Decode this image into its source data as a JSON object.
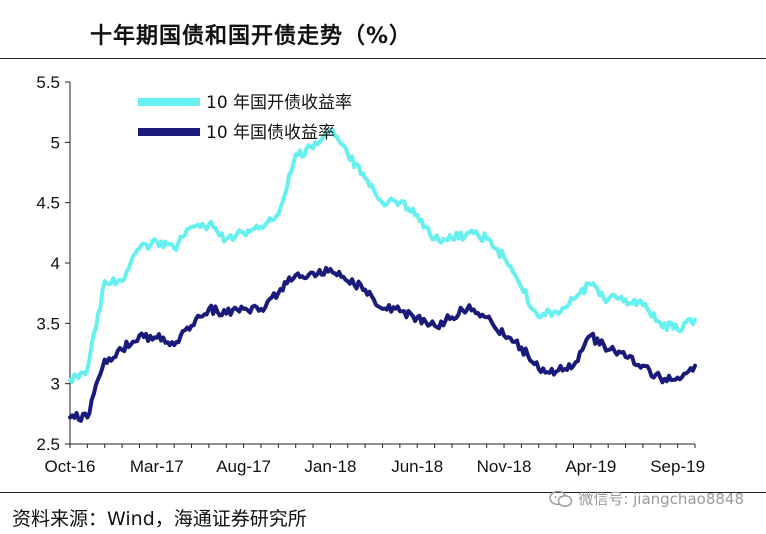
{
  "header": {
    "title": "十年期国债和国开债走势（%）"
  },
  "footer": {
    "source": "资料来源：Wind，海通证券研究所",
    "watermark": "微信号: jiangchao8848"
  },
  "colors": {
    "cdb": "#66F0F0",
    "gov": "#1A1A7A"
  },
  "icons": {
    "watermark": "wechat-icon"
  },
  "chart_data": {
    "type": "line",
    "title": "",
    "xlabel": "",
    "ylabel": "",
    "ylim": [
      2.5,
      5.5
    ],
    "yticks": [
      "5.5",
      "5",
      "4.5",
      "4",
      "3.5",
      "3",
      "2.5"
    ],
    "xticks": [
      "Oct-16",
      "Mar-17",
      "Aug-17",
      "Jan-18",
      "Jun-18",
      "Nov-18",
      "Apr-19",
      "Sep-19"
    ],
    "x_ticks_index": [
      0,
      5,
      10,
      15,
      20,
      25,
      30,
      35
    ],
    "grid": false,
    "legend": "top-left",
    "x": [
      "2016-10",
      "2016-11",
      "2016-12",
      "2017-01",
      "2017-02",
      "2017-03",
      "2017-04",
      "2017-05",
      "2017-06",
      "2017-07",
      "2017-08",
      "2017-09",
      "2017-10",
      "2017-11",
      "2017-12",
      "2018-01",
      "2018-02",
      "2018-03",
      "2018-04",
      "2018-05",
      "2018-06",
      "2018-07",
      "2018-08",
      "2018-09",
      "2018-10",
      "2018-11",
      "2018-12",
      "2019-01",
      "2019-02",
      "2019-03",
      "2019-04",
      "2019-05",
      "2019-06",
      "2019-07",
      "2019-08",
      "2019-09",
      "2019-10"
    ],
    "series": [
      {
        "name": "10 年国开债收益率",
        "color": "#66F0F0",
        "values": [
          3.03,
          3.12,
          3.85,
          3.85,
          4.12,
          4.18,
          4.12,
          4.3,
          4.32,
          4.2,
          4.25,
          4.3,
          4.4,
          4.9,
          4.95,
          5.1,
          4.9,
          4.7,
          4.5,
          4.5,
          4.4,
          4.2,
          4.2,
          4.25,
          4.2,
          4.05,
          3.8,
          3.55,
          3.6,
          3.7,
          3.82,
          3.7,
          3.7,
          3.65,
          3.5,
          3.45,
          3.53
        ]
      },
      {
        "name": "10 年国债收益率",
        "color": "#1A1A7A",
        "values": [
          2.72,
          2.72,
          3.2,
          3.28,
          3.4,
          3.38,
          3.32,
          3.48,
          3.62,
          3.58,
          3.62,
          3.62,
          3.75,
          3.9,
          3.92,
          3.95,
          3.85,
          3.78,
          3.62,
          3.6,
          3.55,
          3.48,
          3.55,
          3.65,
          3.55,
          3.4,
          3.3,
          3.12,
          3.1,
          3.15,
          3.4,
          3.28,
          3.22,
          3.15,
          3.05,
          3.05,
          3.15
        ]
      }
    ]
  }
}
